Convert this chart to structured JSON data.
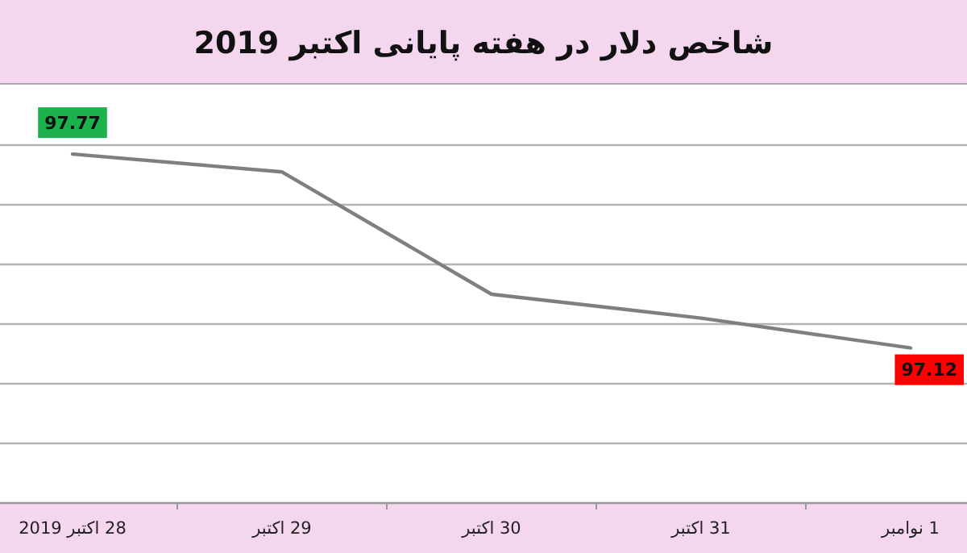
{
  "chart_data": {
    "type": "line",
    "title": "شاخص دلار در هفته پایانی اکتبر 2019",
    "categories": [
      "28 اکتبر 2019",
      "29 اکتبر",
      "30 اکتبر",
      "31 اکتبر",
      "1 نوامبر"
    ],
    "values": [
      97.77,
      97.71,
      97.3,
      97.22,
      97.12
    ],
    "value_labels": [
      "97.77",
      null,
      null,
      null,
      "97.12"
    ],
    "color": "#7f7f7f",
    "yticks": [
      {
        "value": 96.8,
        "label": null
      },
      {
        "value": 97.0,
        "label": null
      },
      {
        "value": 97.2,
        "label": null
      },
      {
        "value": 97.4,
        "label": null
      },
      {
        "value": 97.6,
        "label": null
      },
      {
        "value": 97.8,
        "label": null
      }
    ],
    "tick_labels": "x",
    "grid": "y",
    "marker": "none",
    "line_style": "solid"
  }
}
